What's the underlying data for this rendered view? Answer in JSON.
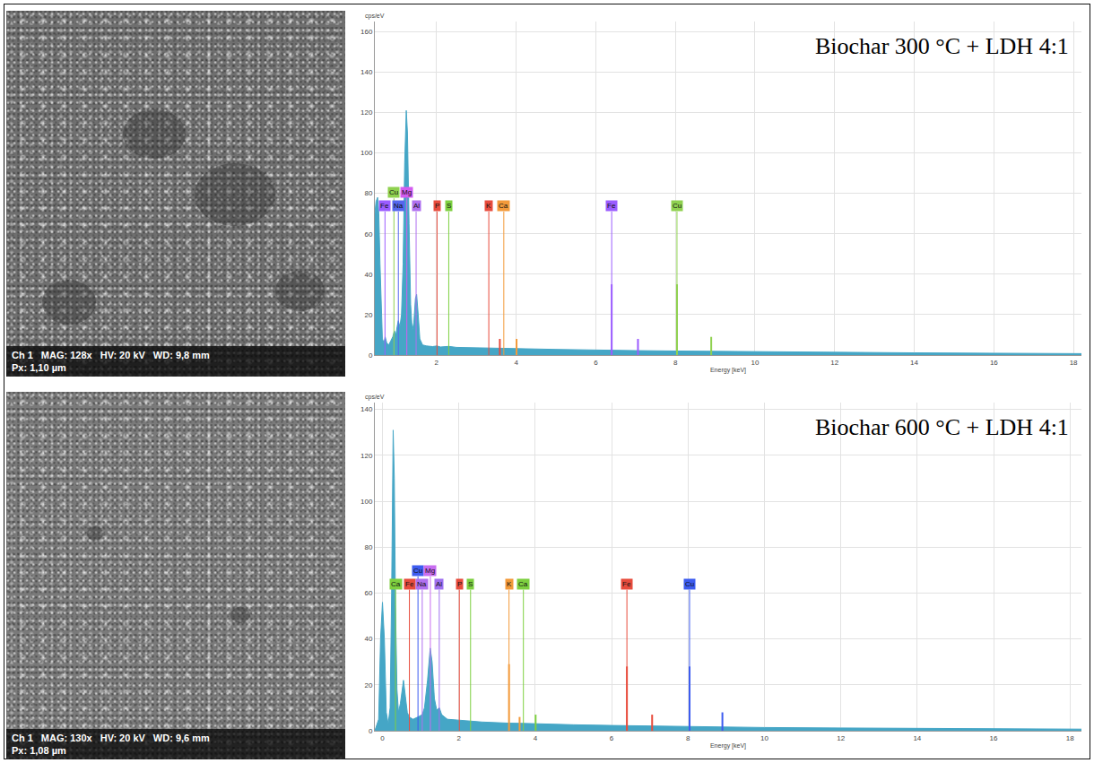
{
  "images": [
    {
      "info": [
        "Ch 1",
        "MAG: 128x",
        "HV: 20 kV",
        "WD: 9,8 mm"
      ],
      "px": "Px: 1,10 µm"
    },
    {
      "info": [
        "Ch 1",
        "MAG: 130x",
        "HV: 20 kV",
        "WD: 9,6 mm"
      ],
      "px": "Px: 1,08 µm"
    }
  ],
  "chart_data": [
    {
      "type": "area",
      "title": "Biochar 300 °C + LDH 4:1",
      "ylabel": "cps/eV",
      "xlabel": "Energy [keV]",
      "color": "#45a6c6",
      "grid": true,
      "xlim": [
        0.45,
        18.2
      ],
      "xticks": [
        2,
        4,
        6,
        8,
        10,
        12,
        14,
        16,
        18
      ],
      "ylim": [
        0,
        165
      ],
      "yticks": [
        0,
        20,
        40,
        60,
        80,
        100,
        120,
        140,
        160
      ],
      "x": [
        0.45,
        0.48,
        0.52,
        0.55,
        0.58,
        0.61,
        0.64,
        0.68,
        0.71,
        0.75,
        0.8,
        0.85,
        0.9,
        0.94,
        0.98,
        1.01,
        1.04,
        1.08,
        1.12,
        1.16,
        1.2,
        1.24,
        1.27,
        1.31,
        1.35,
        1.39,
        1.43,
        1.47,
        1.5,
        1.54,
        1.58,
        1.65,
        1.75,
        1.9,
        2.01,
        2.1,
        2.31,
        2.5,
        3.0,
        3.31,
        3.69,
        4.0,
        5,
        6,
        6.4,
        7,
        8,
        9,
        10,
        12,
        14,
        16,
        18,
        18.2
      ],
      "values": [
        70,
        76,
        78,
        70,
        45,
        20,
        8,
        6,
        9,
        6,
        5,
        7,
        9,
        12,
        10,
        14,
        17,
        14,
        20,
        45,
        95,
        121,
        110,
        65,
        25,
        12,
        16,
        28,
        30,
        20,
        8,
        5,
        4.5,
        4.2,
        4.5,
        4,
        4.3,
        3.8,
        3.5,
        3.6,
        3.4,
        3.2,
        2.8,
        2.4,
        2.5,
        2.2,
        2,
        1.8,
        1.6,
        1.3,
        1.1,
        0.9,
        0.7,
        0.7
      ],
      "elements": [
        {
          "name": "Fe",
          "color": "#9b5cff",
          "energy": 0.705
        },
        {
          "name": "Cu",
          "color": "#8fd14f",
          "energy": 0.93
        },
        {
          "name": "Na",
          "color": "#5566ee",
          "energy": 1.041
        },
        {
          "name": "Mg",
          "color": "#d35cf0",
          "energy": 1.254
        },
        {
          "name": "Al",
          "color": "#b070f0",
          "energy": 1.487
        },
        {
          "name": "P",
          "color": "#e84c3d",
          "energy": 2.013
        },
        {
          "name": "S",
          "color": "#7ed040",
          "energy": 2.307
        },
        {
          "name": "K",
          "color": "#e84c3d",
          "energy": 3.313,
          "lines": [
            [
              3.59,
              8
            ]
          ]
        },
        {
          "name": "Ca",
          "color": "#f39a3a",
          "energy": 3.69,
          "lines": [
            [
              4.01,
              8
            ]
          ]
        },
        {
          "name": "Fe",
          "color": "#9b5cff",
          "energy": 6.4,
          "lines": [
            [
              6.4,
              35
            ],
            [
              7.06,
              8
            ]
          ]
        },
        {
          "name": "Cu",
          "color": "#8fd14f",
          "energy": 8.04,
          "lines": [
            [
              8.04,
              35
            ],
            [
              8.9,
              9
            ]
          ]
        }
      ]
    },
    {
      "type": "area",
      "title": "Biochar 600 °C + LDH 4:1",
      "ylabel": "cps/eV",
      "xlabel": "Energy [keV]",
      "color": "#45a6c6",
      "grid": true,
      "xlim": [
        -0.2,
        18.3
      ],
      "xticks": [
        0,
        2,
        4,
        6,
        8,
        10,
        12,
        14,
        16,
        18
      ],
      "ylim": [
        0,
        143
      ],
      "yticks": [
        0,
        20,
        40,
        60,
        80,
        100,
        120,
        140
      ],
      "x": [
        -0.2,
        -0.1,
        -0.05,
        0,
        0.05,
        0.1,
        0.15,
        0.2,
        0.24,
        0.28,
        0.31,
        0.34,
        0.38,
        0.42,
        0.47,
        0.52,
        0.55,
        0.6,
        0.65,
        0.7,
        0.8,
        0.93,
        1.04,
        1.1,
        1.18,
        1.25,
        1.3,
        1.36,
        1.42,
        1.49,
        1.55,
        1.7,
        2.0,
        2.31,
        2.6,
        3.0,
        3.31,
        3.69,
        4,
        5,
        6,
        6.4,
        7,
        8,
        9,
        10,
        12,
        14,
        16,
        18,
        18.3
      ],
      "values": [
        0,
        5,
        40,
        56,
        40,
        8,
        3,
        10,
        60,
        131,
        110,
        55,
        18,
        8,
        12,
        20,
        22,
        15,
        8,
        6,
        5,
        6,
        7,
        10,
        22,
        36,
        30,
        14,
        9,
        10,
        7,
        5,
        4.5,
        4.2,
        3.8,
        3.4,
        3.3,
        3.2,
        3,
        2.6,
        2.3,
        2.2,
        2,
        1.8,
        1.6,
        1.4,
        1.2,
        1,
        0.8,
        0.7,
        0.7
      ],
      "elements": [
        {
          "name": "Ca",
          "color": "#7ed040",
          "energy": 0.341
        },
        {
          "name": "Fe",
          "color": "#e84c3d",
          "energy": 0.705
        },
        {
          "name": "Cu",
          "color": "#3d5cf0",
          "energy": 0.93
        },
        {
          "name": "Na",
          "color": "#b070f0",
          "energy": 1.041
        },
        {
          "name": "Mg",
          "color": "#c86cf0",
          "energy": 1.254
        },
        {
          "name": "Al",
          "color": "#a070f0",
          "energy": 1.487
        },
        {
          "name": "P",
          "color": "#e84c3d",
          "energy": 2.013
        },
        {
          "name": "S",
          "color": "#7ed040",
          "energy": 2.307
        },
        {
          "name": "K",
          "color": "#f39a3a",
          "energy": 3.313,
          "lines": [
            [
              3.313,
              29
            ],
            [
              3.59,
              6
            ]
          ]
        },
        {
          "name": "Ca",
          "color": "#7ed040",
          "energy": 3.69,
          "lines": [
            [
              4.01,
              7
            ]
          ]
        },
        {
          "name": "Fe",
          "color": "#e84c3d",
          "energy": 6.4,
          "lines": [
            [
              6.4,
              28
            ],
            [
              7.06,
              7
            ]
          ]
        },
        {
          "name": "Cu",
          "color": "#3d5cf0",
          "energy": 8.04,
          "lines": [
            [
              8.04,
              28
            ],
            [
              8.9,
              8
            ]
          ]
        }
      ]
    }
  ]
}
